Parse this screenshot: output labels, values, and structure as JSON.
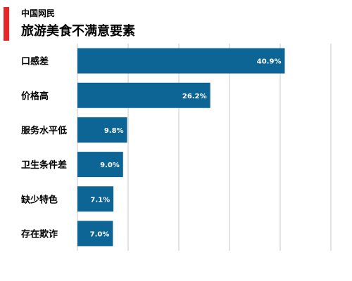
{
  "header": {
    "subtitle": "中国网民",
    "title": "旅游美食不满意要素"
  },
  "colors": {
    "accent": "#e8262a",
    "bar": "#0d6596",
    "grid": "#c8c8c8",
    "value_text": "#ffffff"
  },
  "chart_data": {
    "type": "bar",
    "orientation": "horizontal",
    "title": "旅游美食不满意要素",
    "subtitle": "中国网民",
    "categories": [
      "口感差",
      "价格高",
      "服务水平低",
      "卫生条件差",
      "缺少特色",
      "存在欺诈"
    ],
    "values": [
      40.9,
      26.2,
      9.8,
      9.0,
      7.1,
      7.0
    ],
    "value_labels": [
      "40.9%",
      "26.2%",
      "9.8%",
      "9.0%",
      "7.1%",
      "7.0%"
    ],
    "unit": "%",
    "xlim": [
      0,
      50
    ],
    "grid": true,
    "legend": "none"
  }
}
